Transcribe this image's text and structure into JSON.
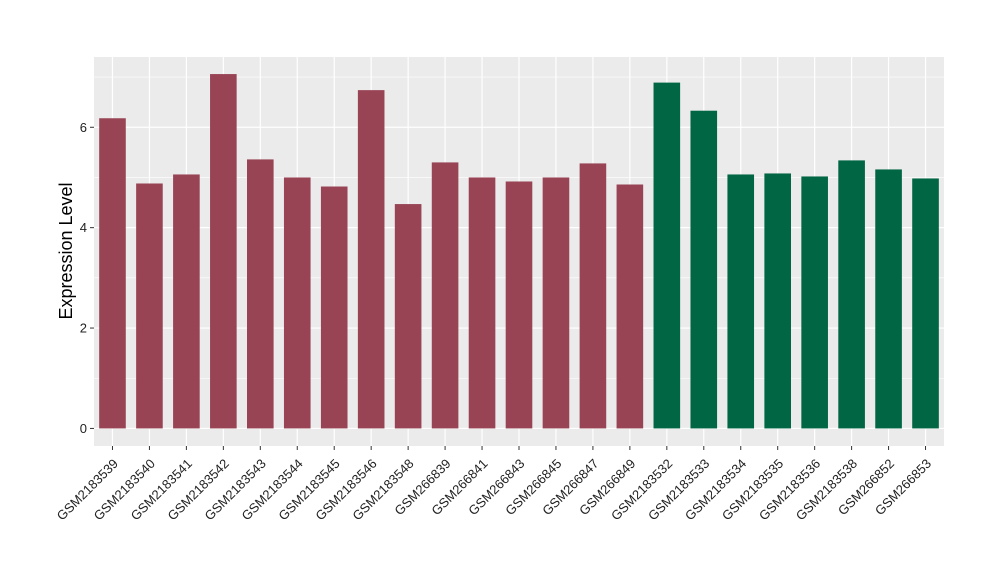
{
  "chart_data": {
    "type": "bar",
    "title": "",
    "xlabel": "",
    "ylabel": "Expression Level",
    "ylim": [
      -0.35,
      7.4
    ],
    "yticks": [
      0,
      2,
      4,
      6
    ],
    "grid": true,
    "legend": "none",
    "categories": [
      "GSM2183539",
      "GSM2183540",
      "GSM2183541",
      "GSM2183542",
      "GSM2183543",
      "GSM2183544",
      "GSM2183545",
      "GSM2183546",
      "GSM2183548",
      "GSM266839",
      "GSM266841",
      "GSM266843",
      "GSM266845",
      "GSM266847",
      "GSM266849",
      "GSM2183532",
      "GSM2183533",
      "GSM2183534",
      "GSM2183535",
      "GSM2183536",
      "GSM2183538",
      "GSM266852",
      "GSM266853"
    ],
    "values": [
      6.18,
      4.88,
      5.06,
      7.06,
      5.36,
      5.0,
      4.82,
      6.74,
      4.47,
      5.3,
      5.0,
      4.92,
      5.0,
      5.28,
      4.86,
      6.89,
      6.33,
      5.06,
      5.08,
      5.02,
      5.34,
      5.16,
      4.98
    ],
    "colors": [
      "#994455",
      "#994455",
      "#994455",
      "#994455",
      "#994455",
      "#994455",
      "#994455",
      "#994455",
      "#994455",
      "#994455",
      "#994455",
      "#994455",
      "#994455",
      "#994455",
      "#994455",
      "#006644",
      "#006644",
      "#006644",
      "#006644",
      "#006644",
      "#006644",
      "#006644",
      "#006644"
    ],
    "panel_background": "#ebebeb",
    "gridline_color": "#ffffff"
  }
}
